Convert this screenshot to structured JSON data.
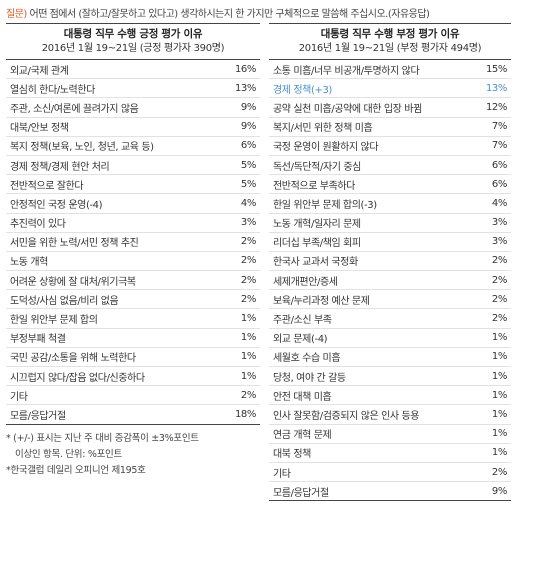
{
  "question": {
    "tag": "질문)",
    "text": " 어떤 점에서 (잘하고/잘못하고 있다고) 생각하시는지 한 가지만 구체적으로 말씀해 주십시오.(자유응답)"
  },
  "left": {
    "title": "대통령 직무 수행 긍정 평가 이유",
    "subtitle": "2016년 1월 19~21일 (긍정 평가자 390명)",
    "rows": [
      {
        "label": "외교/국제 관계",
        "pct": "16%"
      },
      {
        "label": "열심히 한다/노력한다",
        "pct": "13%"
      },
      {
        "label": "주관, 소신/여론에 끌려가지 않음",
        "pct": "9%"
      },
      {
        "label": "대북/안보 정책",
        "pct": "9%"
      },
      {
        "label": "복지 정책(보육, 노인, 청년, 교육 등)",
        "pct": "6%"
      },
      {
        "label": "경제 정책/경제 현안 처리",
        "pct": "5%"
      },
      {
        "label": "전반적으로 잘한다",
        "pct": "5%"
      },
      {
        "label": "안정적인 국정 운영(-4)",
        "pct": "4%"
      },
      {
        "label": "추진력이 있다",
        "pct": "3%"
      },
      {
        "label": "서민을 위한 노력/서민 정책 추진",
        "pct": "2%"
      },
      {
        "label": "노동 개혁",
        "pct": "2%"
      },
      {
        "label": "어려운 상황에 잘 대처/위기극복",
        "pct": "2%"
      },
      {
        "label": "도덕성/사심 없음/비리 없음",
        "pct": "2%"
      },
      {
        "label": "한일 위안부 문제 합의",
        "pct": "1%"
      },
      {
        "label": "부정부패 척결",
        "pct": "1%"
      },
      {
        "label": "국민 공감/소통을 위해 노력한다",
        "pct": "1%"
      },
      {
        "label": "시끄럽지 않다/잡음 없다/신중하다",
        "pct": "1%"
      },
      {
        "label": "기타",
        "pct": "2%"
      },
      {
        "label": "모름/응답거절",
        "pct": "18%"
      }
    ],
    "notes": [
      "* (+/-) 표시는 지난 주 대비 증감폭이 ±3%포인트",
      "이상인 항목. 단위: %포인트",
      "*한국갤럽 데일리 오피니언 제195호"
    ]
  },
  "right": {
    "title": "대통령 직무 수행 부정 평가 이유",
    "subtitle": "2016년 1월 19~21일 (부정 평가자 494명)",
    "rows": [
      {
        "label": "소통 미흡/너무 비공개/투명하지 않다",
        "pct": "15%"
      },
      {
        "label": "경제 정책(+3)",
        "pct": "13%",
        "blue": true
      },
      {
        "label": "공약 실천 미흡/공약에 대한 입장 바뀜",
        "pct": "12%"
      },
      {
        "label": "복지/서민 위한 정책 미흡",
        "pct": "7%"
      },
      {
        "label": "국정 운영이 원활하지 않다",
        "pct": "7%"
      },
      {
        "label": "독선/독단적/자기 중심",
        "pct": "6%"
      },
      {
        "label": "전반적으로 부족하다",
        "pct": "6%"
      },
      {
        "label": "한일 위안부 문제 합의(-3)",
        "pct": "4%"
      },
      {
        "label": "노동 개혁/일자리 문제",
        "pct": "3%"
      },
      {
        "label": "리더십 부족/책임 회피",
        "pct": "3%"
      },
      {
        "label": "한국사 교과서 국정화",
        "pct": "2%"
      },
      {
        "label": "세제개편안/증세",
        "pct": "2%"
      },
      {
        "label": "보육/누리과정 예산 문제",
        "pct": "2%"
      },
      {
        "label": "주관/소신 부족",
        "pct": "2%"
      },
      {
        "label": "외교 문제(-4)",
        "pct": "1%"
      },
      {
        "label": "세월호 수습 미흡",
        "pct": "1%"
      },
      {
        "label": "당청, 여야 간 갈등",
        "pct": "1%"
      },
      {
        "label": "안전 대책 미흡",
        "pct": "1%"
      },
      {
        "label": "인사 잘못함/검증되지 않은 인사 등용",
        "pct": "1%"
      },
      {
        "label": "연금 개혁 문제",
        "pct": "1%"
      },
      {
        "label": "대북 정책",
        "pct": "1%"
      },
      {
        "label": "기타",
        "pct": "2%"
      },
      {
        "label": "모름/응답거절",
        "pct": "9%"
      }
    ]
  },
  "colors": {
    "accent_orange": "#e05a1c",
    "highlight_blue": "#4a8fd4"
  }
}
